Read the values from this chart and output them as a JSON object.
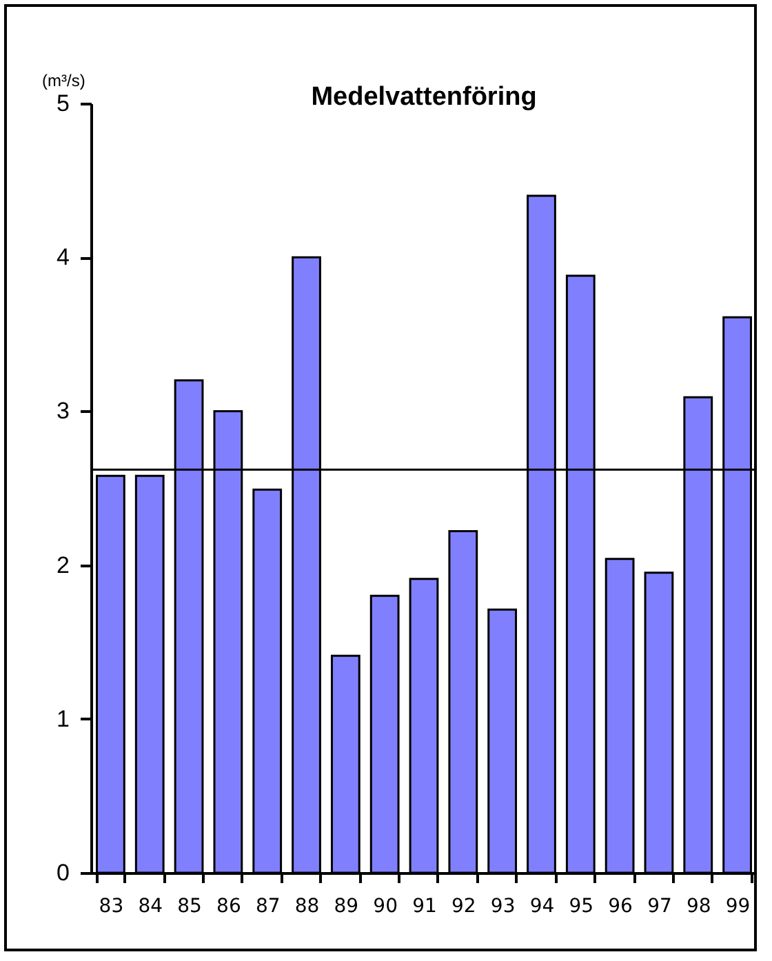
{
  "chart_data": {
    "type": "bar",
    "title": "Medelvattenföring",
    "ylabel": "(m³/s)",
    "categories": [
      "83",
      "84",
      "85",
      "86",
      "87",
      "88",
      "89",
      "90",
      "91",
      "92",
      "93",
      "94",
      "95",
      "96",
      "97",
      "98",
      "99"
    ],
    "values": [
      2.58,
      2.58,
      3.2,
      3.0,
      2.49,
      4.0,
      1.41,
      1.8,
      1.91,
      2.22,
      1.71,
      4.4,
      3.88,
      2.04,
      1.95,
      3.09,
      3.61
    ],
    "color": "#8080ff",
    "ylim": [
      0,
      5
    ],
    "yticks": [
      0,
      1,
      2,
      3,
      4,
      5
    ],
    "ref_lines": [
      {
        "axis": "y",
        "value": 2.62,
        "color": "#000000"
      }
    ]
  }
}
